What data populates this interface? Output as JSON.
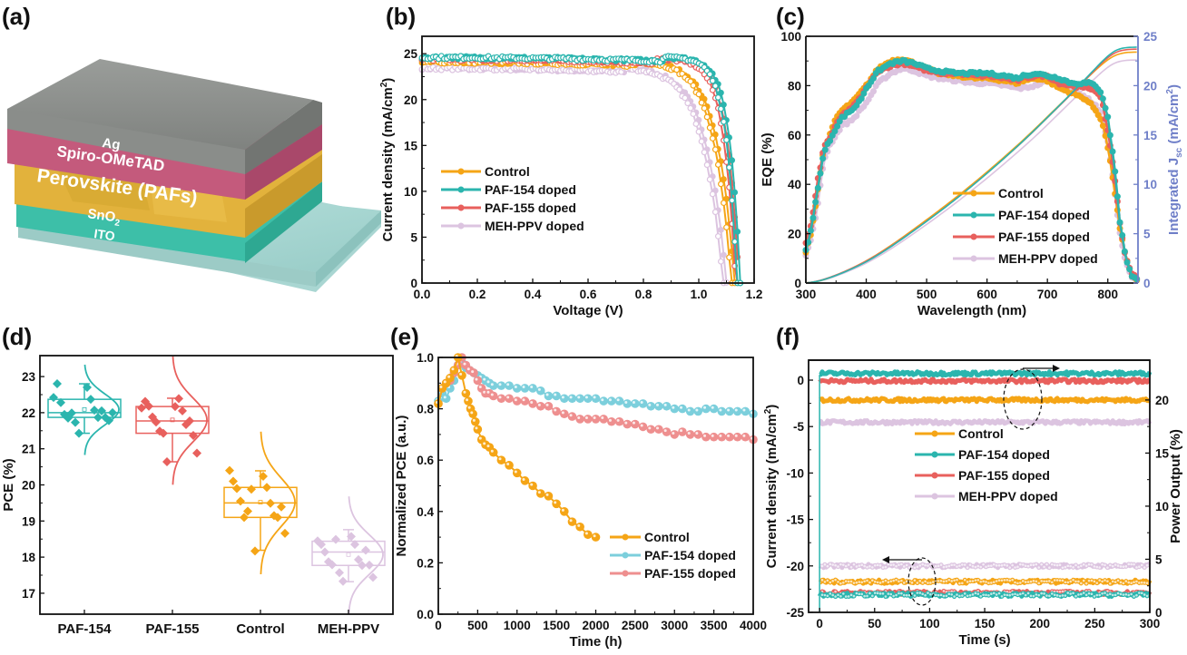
{
  "panel_labels": [
    "(a)",
    "(b)",
    "(c)",
    "(d)",
    "(e)",
    "(f)"
  ],
  "device_schematic": {
    "layers": [
      "Ag",
      "Spiro-OMeTAD",
      "Perovskite (PAFs)",
      "SnO2",
      "ITO"
    ],
    "colors": {
      "Ag": "#8c8f8c",
      "Spiro-OMeTAD": "#c45a7c",
      "Perovskite (PAFs)": "#e2b23c",
      "SnO2": "#3dbfa8",
      "ITO": "#a9d6d2"
    }
  },
  "colors": {
    "Control": "#f5a516",
    "PAF-154 doped": "#2bb5ae",
    "PAF-155 doped": "#e8605d",
    "MEH-PPV doped": "#dcc4e0",
    "right_axis": "#6f7fc8",
    "e_PAF-154": "#7ccfdc",
    "e_PAF-155": "#ee8f8f"
  },
  "chart_data": [
    {
      "panel": "(b)",
      "type": "line",
      "title": "",
      "xlabel": "Voltage (V)",
      "ylabel": "Current density (mA/cm2)",
      "xlim": [
        0,
        1.2
      ],
      "ylim": [
        0,
        26.9
      ],
      "xticks": [
        "0.0",
        "0.2",
        "0.4",
        "0.6",
        "0.8",
        "1.0",
        "1.2"
      ],
      "xtick_values": [
        0,
        0.2,
        0.4,
        0.6,
        0.8,
        1.0,
        1.2
      ],
      "yticks": [
        "0",
        "5",
        "10",
        "15",
        "20",
        "25"
      ],
      "ytick_values": [
        0,
        5,
        10,
        15,
        20,
        25
      ],
      "legend": [
        "Control",
        "PAF-154 doped",
        "PAF-155 doped",
        "MEH-PPV doped"
      ],
      "legend_position": "center-left",
      "series": [
        {
          "name": "Control",
          "jsc": 24.1,
          "voc": 1.13,
          "knee": 0.78,
          "shape": 5.5
        },
        {
          "name": "PAF-154 doped",
          "jsc": 24.6,
          "voc": 1.15,
          "knee": 0.88,
          "shape": 7.0
        },
        {
          "name": "PAF-155 doped",
          "jsc": 24.4,
          "voc": 1.145,
          "knee": 0.86,
          "shape": 6.8
        },
        {
          "name": "MEH-PPV doped",
          "jsc": 23.4,
          "voc": 1.1,
          "knee": 0.74,
          "shape": 5.0
        }
      ]
    },
    {
      "panel": "(c)",
      "type": "line",
      "xlabel": "Wavelength (nm)",
      "ylabel": "EQE (%)",
      "ylabel_right": "Integrated Jsc (mA/cm2)",
      "xlim": [
        300,
        850
      ],
      "ylim": [
        0,
        100
      ],
      "ylim_right": [
        0,
        25
      ],
      "xticks": [
        "300",
        "400",
        "500",
        "600",
        "700",
        "800"
      ],
      "xtick_values": [
        300,
        400,
        500,
        600,
        700,
        800
      ],
      "yticks": [
        "0",
        "20",
        "40",
        "60",
        "80",
        "100"
      ],
      "ytick_values": [
        0,
        20,
        40,
        60,
        80,
        100
      ],
      "yticks_right": [
        "0",
        "5",
        "10",
        "15",
        "20",
        "25"
      ],
      "ytick_values_right": [
        0,
        5,
        10,
        15,
        20,
        25
      ],
      "legend": [
        "Control",
        "PAF-154 doped",
        "PAF-155 doped",
        "MEH-PPV doped"
      ],
      "legend_position": "lower-right",
      "x": [
        300,
        310,
        320,
        330,
        340,
        350,
        360,
        370,
        380,
        390,
        400,
        420,
        440,
        460,
        480,
        500,
        520,
        550,
        580,
        600,
        630,
        650,
        660,
        680,
        700,
        720,
        740,
        760,
        770,
        780,
        790,
        800,
        810,
        820,
        830,
        840,
        850
      ],
      "series": [
        {
          "name": "Control",
          "eqe": [
            12,
            22,
            38,
            55,
            60,
            67,
            70,
            72,
            74,
            77,
            80,
            87,
            90,
            91,
            89,
            87,
            85,
            84,
            83,
            83,
            82,
            81,
            82,
            83,
            82,
            79,
            77,
            75,
            73,
            70,
            66,
            55,
            40,
            22,
            10,
            3,
            1
          ],
          "integrated_jsc_final": 23.4
        },
        {
          "name": "PAF-154 doped",
          "eqe": [
            13,
            23,
            39,
            53,
            58,
            63,
            67,
            69,
            71,
            74,
            79,
            86,
            89,
            90,
            89,
            87,
            86,
            85,
            85,
            85,
            84,
            83,
            84,
            85,
            84,
            83,
            81,
            81,
            81,
            80,
            77,
            67,
            50,
            25,
            10,
            3,
            1
          ],
          "integrated_jsc_final": 23.9
        },
        {
          "name": "PAF-155 doped",
          "eqe": [
            16,
            25,
            42,
            55,
            59,
            64,
            68,
            70,
            72,
            75,
            79,
            86,
            88,
            89,
            88,
            86,
            85,
            85,
            84,
            84,
            83,
            82,
            83,
            84,
            84,
            81,
            80,
            79,
            79,
            78,
            74,
            62,
            46,
            24,
            10,
            4,
            1
          ],
          "integrated_jsc_final": 23.7
        },
        {
          "name": "MEH-PPV doped",
          "eqe": [
            11,
            19,
            32,
            50,
            56,
            60,
            64,
            65,
            67,
            70,
            73,
            81,
            85,
            87,
            86,
            84,
            83,
            82,
            81,
            81,
            80,
            79,
            79,
            80,
            82,
            81,
            78,
            76,
            74,
            72,
            68,
            57,
            40,
            20,
            8,
            2,
            1
          ],
          "integrated_jsc_final": 22.6
        }
      ]
    },
    {
      "panel": "(d)",
      "type": "box",
      "ylabel": "PCE (%)",
      "ylim": [
        16.42,
        23.58
      ],
      "yticks": [
        "17",
        "18",
        "19",
        "20",
        "21",
        "22",
        "23"
      ],
      "ytick_values": [
        17,
        18,
        19,
        20,
        21,
        22,
        23
      ],
      "categories": [
        "PAF-154",
        "PAF-155",
        "Control",
        "MEH-PPV"
      ],
      "series": [
        {
          "name": "PAF-154",
          "q1": 21.87,
          "median": 22.0,
          "q3": 22.37,
          "mean": 22.09,
          "whisker_low": 21.43,
          "whisker_high": 22.8,
          "points": [
            22.42,
            22.7,
            22.8,
            22.37,
            22.28,
            22.07,
            21.95,
            21.87,
            21.85,
            22.05,
            21.99,
            21.87,
            21.73,
            21.78,
            21.43,
            22.0
          ]
        },
        {
          "name": "PAF-155",
          "q1": 21.43,
          "median": 21.77,
          "q3": 22.17,
          "mean": 21.8,
          "whisker_low": 20.64,
          "whisker_high": 22.4,
          "points": [
            22.13,
            22.17,
            22.31,
            22.39,
            22.18,
            22.05,
            21.88,
            21.67,
            21.74,
            21.77,
            21.49,
            21.37,
            21.43,
            20.88,
            20.64
          ]
        },
        {
          "name": "Control",
          "q1": 19.1,
          "median": 19.5,
          "q3": 19.93,
          "mean": 19.52,
          "whisker_low": 18.19,
          "whisker_high": 20.39,
          "points": [
            20.4,
            20.24,
            20.1,
            19.93,
            19.9,
            19.49,
            19.55,
            19.15,
            19.1,
            19.1,
            19.27,
            19.39,
            19.88,
            18.66,
            18.17
          ]
        },
        {
          "name": "MEH-PPV",
          "q1": 17.77,
          "median": 18.14,
          "q3": 18.44,
          "mean": 18.07,
          "whisker_low": 17.32,
          "whisker_high": 18.76,
          "points": [
            18.45,
            18.57,
            18.35,
            18.35,
            18.14,
            17.93,
            17.87,
            17.77,
            17.79,
            18.19,
            18.49,
            17.78,
            17.57,
            17.44,
            17.33
          ]
        }
      ]
    },
    {
      "panel": "(e)",
      "type": "line",
      "xlabel": "Time (h)",
      "ylabel": "Normalized PCE (a.u.)",
      "xlim": [
        0,
        4000
      ],
      "ylim": [
        0,
        1.0
      ],
      "xticks": [
        "0",
        "500",
        "1000",
        "1500",
        "2000",
        "2500",
        "3000",
        "3500",
        "4000"
      ],
      "xtick_values": [
        0,
        500,
        1000,
        1500,
        2000,
        2500,
        3000,
        3500,
        4000
      ],
      "yticks": [
        "0.0",
        "0.2",
        "0.4",
        "0.6",
        "0.8",
        "1.0"
      ],
      "ytick_values": [
        0,
        0.2,
        0.4,
        0.6,
        0.8,
        1.0
      ],
      "legend": [
        "Control",
        "PAF-154 doped",
        "PAF-155 doped"
      ],
      "legend_position": "lower-right",
      "series": [
        {
          "name": "Control",
          "x": [
            0,
            50,
            100,
            150,
            200,
            250,
            300,
            350,
            380,
            410,
            440,
            470,
            500,
            550,
            600,
            650,
            700,
            800,
            900,
            1000,
            1100,
            1200,
            1300,
            1400,
            1500,
            1600,
            1700,
            1800,
            1900,
            2000
          ],
          "y": [
            0.82,
            0.88,
            0.9,
            0.92,
            0.95,
            1.0,
            0.93,
            0.86,
            0.83,
            0.8,
            0.78,
            0.75,
            0.72,
            0.68,
            0.66,
            0.65,
            0.63,
            0.6,
            0.58,
            0.55,
            0.52,
            0.5,
            0.47,
            0.46,
            0.43,
            0.4,
            0.36,
            0.34,
            0.31,
            0.3
          ]
        },
        {
          "name": "PAF-154 doped",
          "x": [
            0,
            50,
            100,
            150,
            200,
            250,
            300,
            350,
            400,
            450,
            500,
            550,
            600,
            650,
            700,
            800,
            900,
            1000,
            1100,
            1200,
            1300,
            1400,
            1500,
            1600,
            1700,
            1800,
            1900,
            2000,
            2100,
            2200,
            2300,
            2400,
            2500,
            2600,
            2700,
            2800,
            2900,
            3000,
            3100,
            3200,
            3300,
            3400,
            3500,
            3600,
            3700,
            3800,
            3900,
            4000
          ],
          "y": [
            0.83,
            0.86,
            0.84,
            0.88,
            0.91,
            0.97,
            0.98,
            0.96,
            0.95,
            0.94,
            0.93,
            0.92,
            0.91,
            0.9,
            0.89,
            0.89,
            0.89,
            0.88,
            0.88,
            0.88,
            0.87,
            0.85,
            0.85,
            0.84,
            0.84,
            0.84,
            0.84,
            0.84,
            0.83,
            0.83,
            0.83,
            0.82,
            0.82,
            0.82,
            0.81,
            0.81,
            0.81,
            0.8,
            0.8,
            0.79,
            0.79,
            0.8,
            0.8,
            0.79,
            0.79,
            0.79,
            0.79,
            0.78
          ]
        },
        {
          "name": "PAF-155 doped",
          "x": [
            0,
            50,
            100,
            150,
            200,
            250,
            300,
            350,
            400,
            450,
            500,
            550,
            600,
            650,
            700,
            800,
            900,
            1000,
            1100,
            1200,
            1300,
            1400,
            1500,
            1600,
            1700,
            1800,
            1900,
            2000,
            2100,
            2200,
            2300,
            2400,
            2500,
            2600,
            2700,
            2800,
            2900,
            3000,
            3100,
            3200,
            3300,
            3400,
            3500,
            3600,
            3700,
            3800,
            3900,
            4000
          ],
          "y": [
            0.82,
            0.88,
            0.9,
            0.91,
            0.94,
            0.97,
            1.0,
            0.97,
            0.95,
            0.94,
            0.91,
            0.88,
            0.86,
            0.86,
            0.85,
            0.84,
            0.84,
            0.83,
            0.83,
            0.82,
            0.81,
            0.81,
            0.79,
            0.78,
            0.77,
            0.76,
            0.76,
            0.76,
            0.76,
            0.75,
            0.75,
            0.74,
            0.74,
            0.73,
            0.72,
            0.72,
            0.71,
            0.7,
            0.71,
            0.7,
            0.7,
            0.69,
            0.69,
            0.69,
            0.69,
            0.69,
            0.69,
            0.68
          ]
        }
      ]
    },
    {
      "panel": "(f)",
      "type": "line",
      "xlabel": "Time (s)",
      "ylabel": "Current density (mA/cm2)",
      "ylabel_right": "Power Output (%)",
      "xlim": [
        -10,
        300
      ],
      "ylim": [
        -25,
        2.15
      ],
      "ylim_right": [
        0,
        23.75
      ],
      "xticks": [
        "0",
        "50",
        "100",
        "150",
        "200",
        "250",
        "300"
      ],
      "xtick_values": [
        0,
        50,
        100,
        150,
        200,
        250,
        300
      ],
      "yticks": [
        "-25",
        "-20",
        "-15",
        "-10",
        "-5",
        "0"
      ],
      "ytick_values": [
        -25,
        -20,
        -15,
        -10,
        -5,
        0
      ],
      "yticks_right": [
        "0",
        "5",
        "10",
        "15",
        "20"
      ],
      "ytick_values_right": [
        0,
        5,
        10,
        15,
        20
      ],
      "legend": [
        "Control",
        "PAF-154 doped",
        "PAF-155 doped",
        "MEH-PPV doped"
      ],
      "legend_position": "center",
      "annotations": [
        "dashed ellipse with arrow pointing right (power output curves)",
        "dashed ellipse with arrow pointing left (current density curves)"
      ],
      "series": [
        {
          "name": "Control",
          "current_density": -21.7,
          "power_output": 20.0
        },
        {
          "name": "PAF-154 doped",
          "current_density": -23.1,
          "power_output": 22.5
        },
        {
          "name": "PAF-155 doped",
          "current_density": -22.9,
          "power_output": 21.8
        },
        {
          "name": "MEH-PPV doped",
          "current_density": -20.0,
          "power_output": 17.9
        }
      ]
    }
  ]
}
